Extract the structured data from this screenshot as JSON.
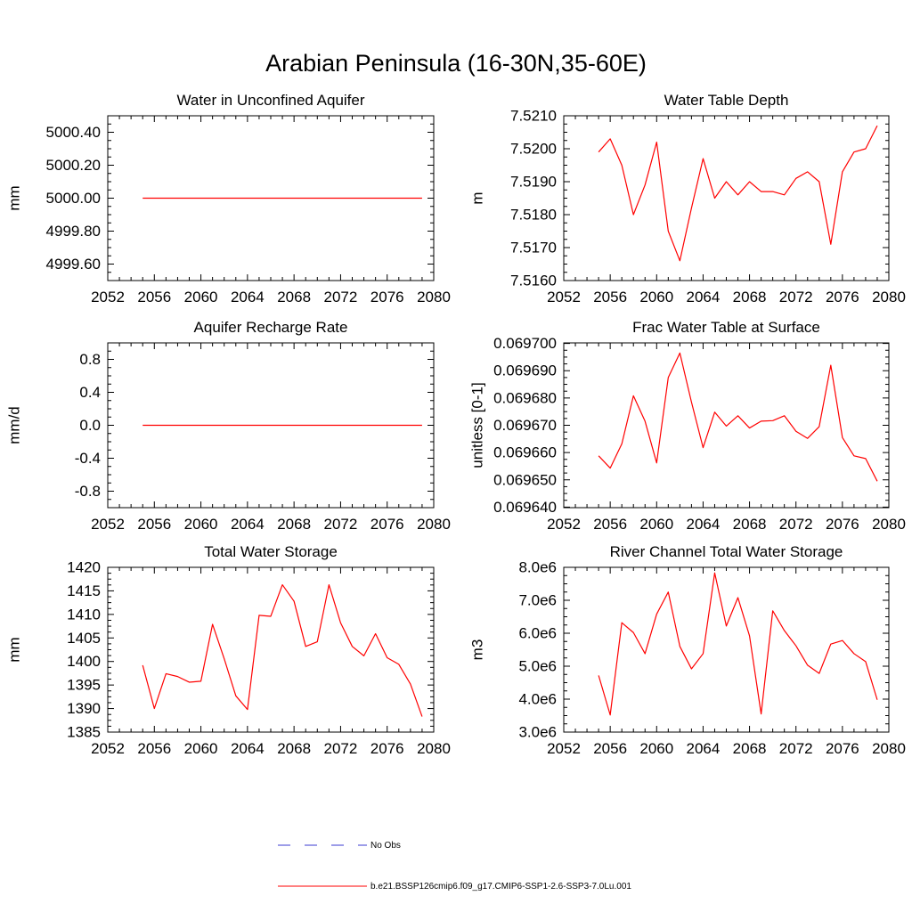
{
  "figure": {
    "title": "Arabian Peninsula (16-30N,35-60E)",
    "legend": [
      {
        "label": "No Obs",
        "color": "#3b3bd0",
        "style": "dashed"
      },
      {
        "label": "b.e21.BSSP126cmip6.f09_g17.CMIP6-SSP1-2.6-SSP3-7.0Lu.001",
        "color": "#ff0000",
        "style": "solid"
      }
    ]
  },
  "chart_data": [
    {
      "type": "line",
      "title": "Water in Unconfined Aquifer",
      "ylabel": "mm",
      "xlim": [
        2052,
        2080
      ],
      "xticks": [
        "2052",
        "2056",
        "2060",
        "2064",
        "2068",
        "2072",
        "2076",
        "2080"
      ],
      "ylim": [
        4999.5,
        5000.5
      ],
      "yticks": [
        4999.6,
        4999.8,
        5000.0,
        5000.2,
        5000.4
      ],
      "ytick_labels": [
        "4999.60",
        "4999.80",
        "5000.00",
        "5000.20",
        "5000.40"
      ],
      "x": [
        2055,
        2056,
        2057,
        2058,
        2059,
        2060,
        2061,
        2062,
        2063,
        2064,
        2065,
        2066,
        2067,
        2068,
        2069,
        2070,
        2071,
        2072,
        2073,
        2074,
        2075,
        2076,
        2077,
        2078,
        2079
      ],
      "series": [
        {
          "color": "#ff0000",
          "values": [
            5000,
            5000,
            5000,
            5000,
            5000,
            5000,
            5000,
            5000,
            5000,
            5000,
            5000,
            5000,
            5000,
            5000,
            5000,
            5000,
            5000,
            5000,
            5000,
            5000,
            5000,
            5000,
            5000,
            5000,
            5000
          ]
        }
      ]
    },
    {
      "type": "line",
      "title": "Water Table Depth",
      "ylabel": "m",
      "xlim": [
        2052,
        2080
      ],
      "xticks": [
        "2052",
        "2056",
        "2060",
        "2064",
        "2068",
        "2072",
        "2076",
        "2080"
      ],
      "ylim": [
        7.516,
        7.521
      ],
      "yticks": [
        7.516,
        7.517,
        7.518,
        7.519,
        7.52,
        7.521
      ],
      "ytick_labels": [
        "7.5160",
        "7.5170",
        "7.5180",
        "7.5190",
        "7.5200",
        "7.5210"
      ],
      "x": [
        2055,
        2056,
        2057,
        2058,
        2059,
        2060,
        2061,
        2062,
        2063,
        2064,
        2065,
        2066,
        2067,
        2068,
        2069,
        2070,
        2071,
        2072,
        2073,
        2074,
        2075,
        2076,
        2077,
        2078,
        2079
      ],
      "series": [
        {
          "color": "#ff0000",
          "values": [
            7.5199,
            7.5203,
            7.5195,
            7.518,
            7.5189,
            7.5202,
            7.5175,
            7.5166,
            7.5182,
            7.5197,
            7.5185,
            7.519,
            7.5186,
            7.519,
            7.5187,
            7.5187,
            7.5186,
            7.5191,
            7.5193,
            7.519,
            7.5171,
            7.5193,
            7.5199,
            7.52,
            7.5207
          ]
        }
      ]
    },
    {
      "type": "line",
      "title": "Aquifer Recharge Rate",
      "ylabel": "mm/d",
      "xlim": [
        2052,
        2080
      ],
      "xticks": [
        "2052",
        "2056",
        "2060",
        "2064",
        "2068",
        "2072",
        "2076",
        "2080"
      ],
      "ylim": [
        -1.0,
        1.0
      ],
      "yticks": [
        -0.8,
        -0.4,
        0.0,
        0.4,
        0.8
      ],
      "ytick_labels": [
        "-0.8",
        "-0.4",
        "0.0",
        "0.4",
        "0.8"
      ],
      "x": [
        2055,
        2056,
        2057,
        2058,
        2059,
        2060,
        2061,
        2062,
        2063,
        2064,
        2065,
        2066,
        2067,
        2068,
        2069,
        2070,
        2071,
        2072,
        2073,
        2074,
        2075,
        2076,
        2077,
        2078,
        2079
      ],
      "series": [
        {
          "color": "#ff0000",
          "values": [
            0,
            0,
            0,
            0,
            0,
            0,
            0,
            0,
            0,
            0,
            0,
            0,
            0,
            0,
            0,
            0,
            0,
            0,
            0,
            0,
            0,
            0,
            0,
            0,
            0
          ]
        }
      ]
    },
    {
      "type": "line",
      "title": "Frac Water Table at Surface",
      "ylabel": "unitless [0-1]",
      "xlim": [
        2052,
        2080
      ],
      "xticks": [
        "2052",
        "2056",
        "2060",
        "2064",
        "2068",
        "2072",
        "2076",
        "2080"
      ],
      "ylim": [
        0.0696398,
        0.0697002
      ],
      "yticks": [
        0.06964,
        0.06965,
        0.06966,
        0.06967,
        0.06968,
        0.06969,
        0.0697
      ],
      "ytick_labels": [
        "0.069640",
        "0.069650",
        "0.069660",
        "0.069670",
        "0.069680",
        "0.069690",
        "0.069700"
      ],
      "x": [
        2055,
        2056,
        2057,
        2058,
        2059,
        2060,
        2061,
        2062,
        2063,
        2064,
        2065,
        2066,
        2067,
        2068,
        2069,
        2070,
        2071,
        2072,
        2073,
        2074,
        2075,
        2076,
        2077,
        2078,
        2079
      ],
      "series": [
        {
          "color": "#ff0000",
          "values": [
            0.0696588,
            0.0696543,
            0.0696632,
            0.0696808,
            0.0696715,
            0.0696562,
            0.0696875,
            0.0696965,
            0.0696785,
            0.0696618,
            0.0696748,
            0.0696697,
            0.0696735,
            0.069669,
            0.0696715,
            0.0696717,
            0.0696735,
            0.0696678,
            0.0696652,
            0.0696695,
            0.069692,
            0.0696655,
            0.0696588,
            0.0696578,
            0.0696495
          ]
        }
      ]
    },
    {
      "type": "line",
      "title": "Total Water Storage",
      "ylabel": "mm",
      "xlim": [
        2052,
        2080
      ],
      "xticks": [
        "2052",
        "2056",
        "2060",
        "2064",
        "2068",
        "2072",
        "2076",
        "2080"
      ],
      "ylim": [
        1385,
        1420
      ],
      "yticks": [
        1385,
        1390,
        1395,
        1400,
        1405,
        1410,
        1415,
        1420
      ],
      "ytick_labels": [
        "1385",
        "1390",
        "1395",
        "1400",
        "1405",
        "1410",
        "1415",
        "1420"
      ],
      "x": [
        2055,
        2056,
        2057,
        2058,
        2059,
        2060,
        2061,
        2062,
        2063,
        2064,
        2065,
        2066,
        2067,
        2068,
        2069,
        2070,
        2071,
        2072,
        2073,
        2074,
        2075,
        2076,
        2077,
        2078,
        2079
      ],
      "series": [
        {
          "color": "#ff0000",
          "values": [
            1399.2,
            1390,
            1397.4,
            1396.8,
            1395.6,
            1395.8,
            1407.9,
            1400.6,
            1392.7,
            1389.8,
            1409.8,
            1409.6,
            1416.3,
            1412.8,
            1403.2,
            1404.2,
            1416.3,
            1408.2,
            1403.2,
            1401.2,
            1405.9,
            1400.8,
            1399.4,
            1395.2,
            1388.3
          ]
        }
      ]
    },
    {
      "type": "line",
      "title": "River Channel Total Water Storage",
      "ylabel": "m3",
      "xlim": [
        2052,
        2080
      ],
      "xticks": [
        "2052",
        "2056",
        "2060",
        "2064",
        "2068",
        "2072",
        "2076",
        "2080"
      ],
      "ylim": [
        3000000,
        8000000
      ],
      "yticks": [
        3000000,
        4000000,
        5000000,
        6000000,
        7000000,
        8000000
      ],
      "ytick_labels": [
        "3.0e6",
        "4.0e6",
        "5.0e6",
        "6.0e6",
        "7.0e6",
        "8.0e6"
      ],
      "x": [
        2055,
        2056,
        2057,
        2058,
        2059,
        2060,
        2061,
        2062,
        2063,
        2064,
        2065,
        2066,
        2067,
        2068,
        2069,
        2070,
        2071,
        2072,
        2073,
        2074,
        2075,
        2076,
        2077,
        2078,
        2079
      ],
      "series": [
        {
          "color": "#ff0000",
          "values": [
            4720000,
            3520000,
            6320000,
            6020000,
            5380000,
            6580000,
            7250000,
            5600000,
            4920000,
            5380000,
            7830000,
            6220000,
            7080000,
            5920000,
            3550000,
            6680000,
            6080000,
            5620000,
            5030000,
            4780000,
            5670000,
            5780000,
            5380000,
            5140000,
            3980000
          ]
        }
      ]
    }
  ]
}
